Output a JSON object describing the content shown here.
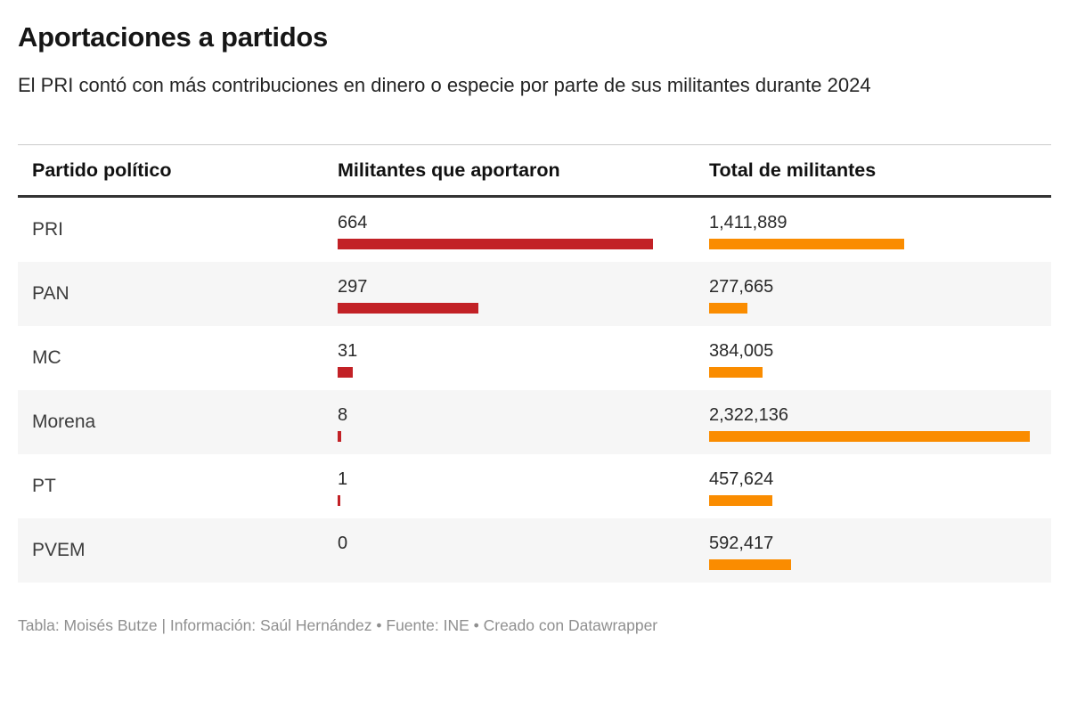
{
  "page": {
    "title": "Aportaciones a partidos",
    "subtitle": "El PRI contó con más contribuciones en dinero o especie por parte de sus militantes durante 2024",
    "footer": "Tabla: Moisés Butze | Información: Saúl Hernández • Fuente: INE • Creado con Datawrapper"
  },
  "table": {
    "columns": [
      "Partido político",
      "Militantes que aportaron",
      "Total de militantes"
    ],
    "rows": [
      {
        "party": "PRI",
        "aportaron_label": "664",
        "total_label": "1,411,889"
      },
      {
        "party": "PAN",
        "aportaron_label": "297",
        "total_label": "277,665"
      },
      {
        "party": "MC",
        "aportaron_label": "31",
        "total_label": "384,005"
      },
      {
        "party": "Morena",
        "aportaron_label": "8",
        "total_label": "2,322,136"
      },
      {
        "party": "PT",
        "aportaron_label": "1",
        "total_label": "457,624"
      },
      {
        "party": "PVEM",
        "aportaron_label": "0",
        "total_label": "592,417"
      }
    ]
  },
  "colors": {
    "aportaron_bar": "#c22126",
    "total_bar": "#fa8c00",
    "row_stripe": "#f6f6f6"
  },
  "chart_data": {
    "type": "table",
    "title": "Aportaciones a partidos",
    "subtitle": "El PRI contó con más contribuciones en dinero o especie por parte de sus militantes durante 2024",
    "columns": [
      "Partido político",
      "Militantes que aportaron",
      "Total de militantes"
    ],
    "categories": [
      "PRI",
      "PAN",
      "MC",
      "Morena",
      "PT",
      "PVEM"
    ],
    "series": [
      {
        "name": "Militantes que aportaron",
        "values": [
          664,
          297,
          31,
          8,
          1,
          0
        ],
        "color": "#c22126",
        "bar_scale": [
          0,
          664
        ]
      },
      {
        "name": "Total de militantes",
        "values": [
          1411889,
          277665,
          384005,
          2322136,
          457624,
          592417
        ],
        "color": "#fa8c00",
        "bar_scale": [
          0,
          2322136
        ]
      }
    ],
    "legend": "none",
    "grid": "off",
    "footer": "Tabla: Moisés Butze | Información: Saúl Hernández • Fuente: INE • Creado con Datawrapper"
  }
}
